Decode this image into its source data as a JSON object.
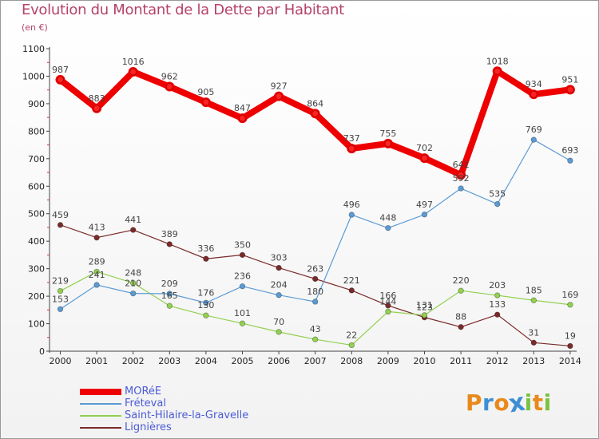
{
  "header": {
    "title": "Evolution du Montant de la Dette par Habitant",
    "subtitle": "(en €)"
  },
  "brand": {
    "text": "Proxiti",
    "letters": [
      {
        "ch": "P",
        "color": "#e8891b"
      },
      {
        "ch": "r",
        "color": "#3d8fd4"
      },
      {
        "ch": "o",
        "color": "#e8891b"
      },
      {
        "ch": "x",
        "color": "#3d8fd4"
      },
      {
        "ch": "i",
        "color": "#7cc242"
      },
      {
        "ch": "t",
        "color": "#e8891b"
      },
      {
        "ch": "i",
        "color": "#7cc242"
      }
    ]
  },
  "chart_data": {
    "type": "line",
    "title": "Evolution du Montant de la Dette par Habitant",
    "subtitle": "(en €)",
    "x": [
      "2000",
      "2001",
      "2002",
      "2003",
      "2004",
      "2005",
      "2006",
      "2007",
      "2008",
      "2009",
      "2010",
      "2011",
      "2012",
      "2013",
      "2014"
    ],
    "ylim": [
      0,
      1100
    ],
    "yticks": [
      0,
      100,
      200,
      300,
      400,
      500,
      600,
      700,
      800,
      900,
      1000,
      1100
    ],
    "grid": false,
    "legend_position": "bottom-left",
    "series": [
      {
        "name": "MORéE",
        "color": "#ee0000",
        "values": [
          987,
          883,
          1016,
          962,
          905,
          847,
          927,
          864,
          737,
          755,
          702,
          641,
          1018,
          934,
          951
        ]
      },
      {
        "name": "Fréteval",
        "color": "#5b9bd5",
        "values": [
          153,
          241,
          210,
          209,
          176,
          236,
          204,
          180,
          496,
          448,
          497,
          592,
          535,
          769,
          693
        ]
      },
      {
        "name": "Saint-Hilaire-la-Gravelle",
        "color": "#92d050",
        "values": [
          219,
          289,
          248,
          165,
          130,
          101,
          70,
          43,
          22,
          144,
          131,
          220,
          203,
          185,
          169
        ]
      },
      {
        "name": "Lignières",
        "color": "#7b2a2a",
        "values": [
          459,
          413,
          441,
          389,
          336,
          350,
          303,
          263,
          221,
          166,
          123,
          88,
          133,
          31,
          19
        ]
      }
    ]
  }
}
